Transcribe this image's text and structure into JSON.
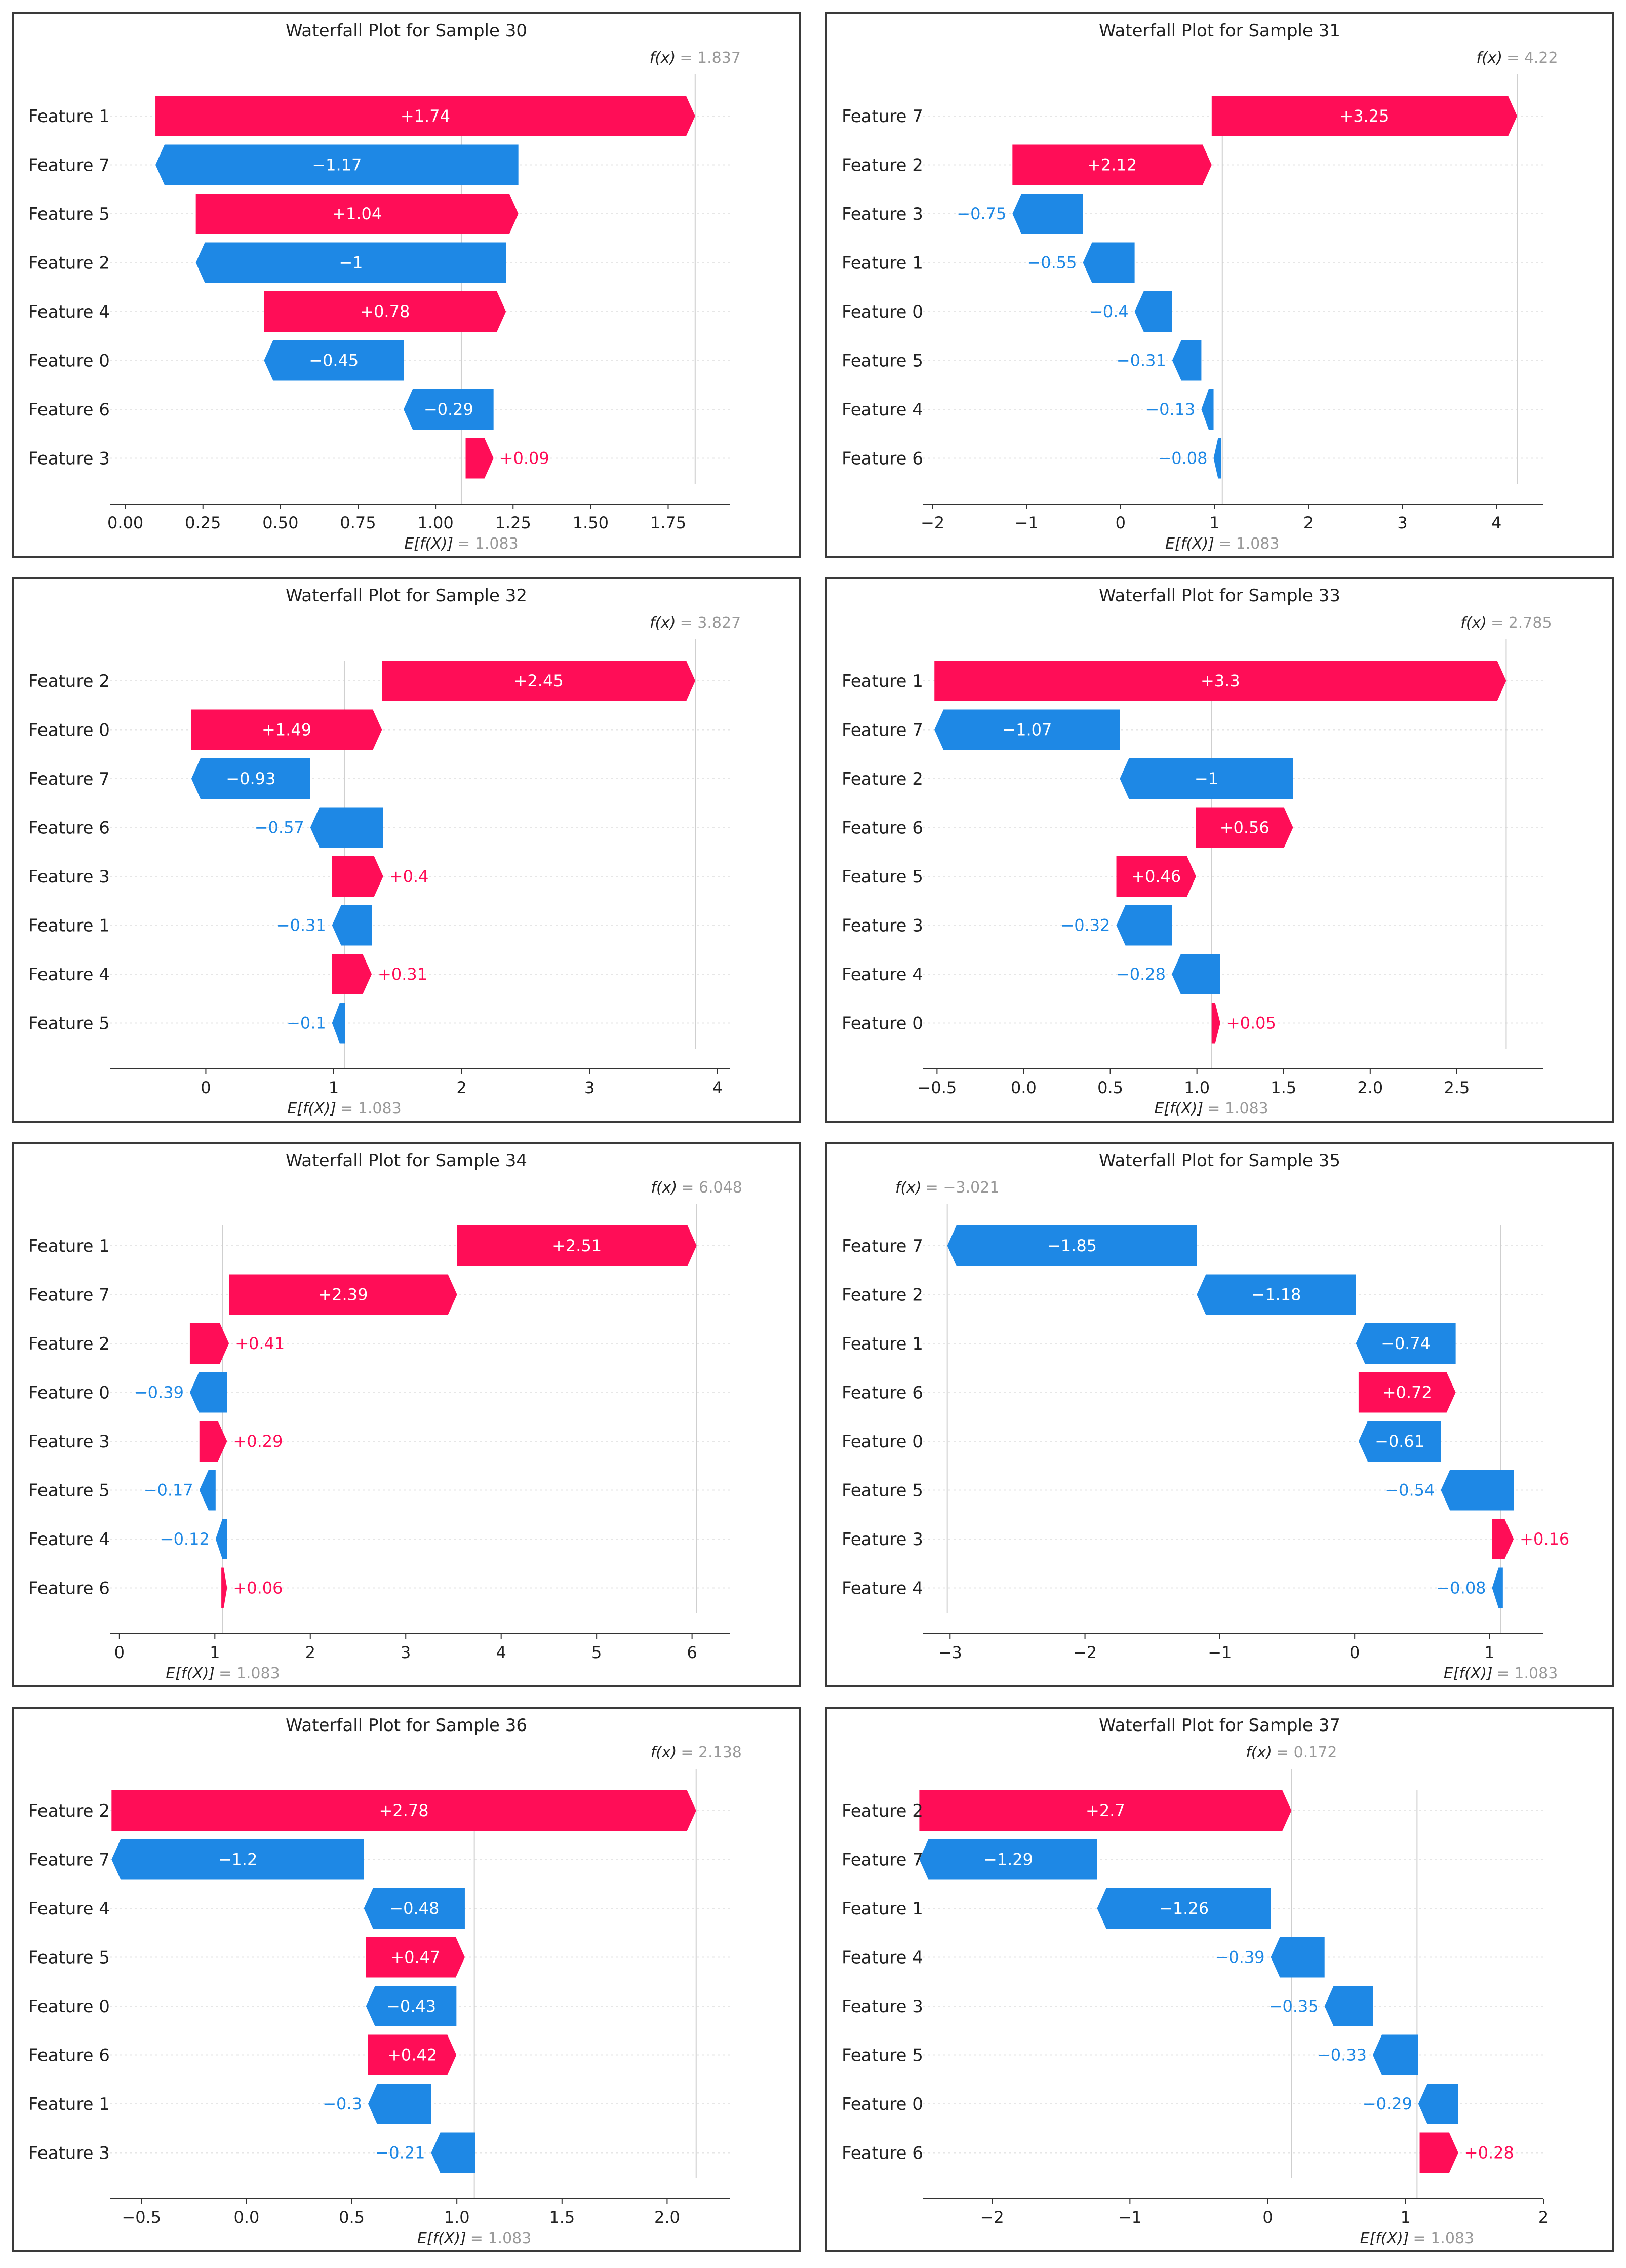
{
  "colors": {
    "positive": "#ff0d57",
    "negative": "#1e88e5"
  },
  "chart_data": [
    {
      "type": "waterfall",
      "title": "Waterfall Plot for Sample 30",
      "base_value": 1.083,
      "fx": 1.837,
      "base_label": "= 1.083",
      "fx_label": "= 1.837",
      "features": [
        "Feature 1",
        "Feature 7",
        "Feature 5",
        "Feature 2",
        "Feature 4",
        "Feature 0",
        "Feature 6",
        "Feature 3"
      ],
      "values": [
        1.74,
        -1.17,
        1.04,
        -1,
        0.78,
        -0.45,
        -0.29,
        0.09
      ],
      "labels": [
        "+1.74",
        "−1.17",
        "+1.04",
        "−1",
        "+0.78",
        "−0.45",
        "−0.29",
        "+0.09"
      ],
      "xlim": [
        -0.05,
        1.95
      ],
      "xticks": [
        0,
        0.25,
        0.5,
        0.75,
        1,
        1.25,
        1.5,
        1.75
      ],
      "xtick_labels": [
        "0.00",
        "0.25",
        "0.50",
        "0.75",
        "1.00",
        "1.25",
        "1.50",
        "1.75"
      ]
    },
    {
      "type": "waterfall",
      "title": "Waterfall Plot for Sample 31",
      "base_value": 1.083,
      "fx": 4.22,
      "base_label": "= 1.083",
      "fx_label": "= 4.22",
      "features": [
        "Feature 7",
        "Feature 2",
        "Feature 3",
        "Feature 1",
        "Feature 0",
        "Feature 5",
        "Feature 4",
        "Feature 6"
      ],
      "values": [
        3.25,
        2.12,
        -0.75,
        -0.55,
        -0.4,
        -0.31,
        -0.13,
        -0.08
      ],
      "labels": [
        "+3.25",
        "+2.12",
        "−0.75",
        "−0.55",
        "−0.4",
        "−0.31",
        "−0.13",
        "−0.08"
      ],
      "xlim": [
        -2.1,
        4.5
      ],
      "xticks": [
        -2,
        -1,
        0,
        1,
        2,
        3,
        4
      ],
      "xtick_labels": [
        "−2",
        "−1",
        "0",
        "1",
        "2",
        "3",
        "4"
      ]
    },
    {
      "type": "waterfall",
      "title": "Waterfall Plot for Sample 32",
      "base_value": 1.083,
      "fx": 3.827,
      "base_label": "= 1.083",
      "fx_label": "= 3.827",
      "features": [
        "Feature 2",
        "Feature 0",
        "Feature 7",
        "Feature 6",
        "Feature 3",
        "Feature 1",
        "Feature 4",
        "Feature 5"
      ],
      "values": [
        2.45,
        1.49,
        -0.93,
        -0.57,
        0.4,
        -0.31,
        0.31,
        -0.1
      ],
      "labels": [
        "+2.45",
        "+1.49",
        "−0.93",
        "−0.57",
        "+0.4",
        "−0.31",
        "+0.31",
        "−0.1"
      ],
      "xlim": [
        -0.75,
        4.1
      ],
      "xticks": [
        0,
        1,
        2,
        3,
        4
      ],
      "xtick_labels": [
        "0",
        "1",
        "2",
        "3",
        "4"
      ]
    },
    {
      "type": "waterfall",
      "title": "Waterfall Plot for Sample 33",
      "base_value": 1.083,
      "fx": 2.785,
      "base_label": "= 1.083",
      "fx_label": "= 2.785",
      "features": [
        "Feature 1",
        "Feature 7",
        "Feature 2",
        "Feature 6",
        "Feature 5",
        "Feature 3",
        "Feature 4",
        "Feature 0"
      ],
      "values": [
        3.3,
        -1.07,
        -1,
        0.56,
        0.46,
        -0.32,
        -0.28,
        0.05
      ],
      "labels": [
        "+3.3",
        "−1.07",
        "−1",
        "+0.56",
        "+0.46",
        "−0.32",
        "−0.28",
        "+0.05"
      ],
      "xlim": [
        -0.58,
        3.0
      ],
      "xticks": [
        -0.5,
        0,
        0.5,
        1,
        1.5,
        2,
        2.5
      ],
      "xtick_labels": [
        "−0.5",
        "0.0",
        "0.5",
        "1.0",
        "1.5",
        "2.0",
        "2.5"
      ]
    },
    {
      "type": "waterfall",
      "title": "Waterfall Plot for Sample 34",
      "base_value": 1.083,
      "fx": 6.048,
      "base_label": "= 1.083",
      "fx_label": "= 6.048",
      "features": [
        "Feature 1",
        "Feature 7",
        "Feature 2",
        "Feature 0",
        "Feature 3",
        "Feature 5",
        "Feature 4",
        "Feature 6"
      ],
      "values": [
        2.51,
        2.39,
        0.41,
        -0.39,
        0.29,
        -0.17,
        -0.12,
        0.06
      ],
      "labels": [
        "+2.51",
        "+2.39",
        "+0.41",
        "−0.39",
        "+0.29",
        "−0.17",
        "−0.12",
        "+0.06"
      ],
      "xlim": [
        -0.1,
        6.4
      ],
      "xticks": [
        0,
        1,
        2,
        3,
        4,
        5,
        6
      ],
      "xtick_labels": [
        "0",
        "1",
        "2",
        "3",
        "4",
        "5",
        "6"
      ]
    },
    {
      "type": "waterfall",
      "title": "Waterfall Plot for Sample 35",
      "base_value": 1.083,
      "fx": -3.021,
      "base_label": "= 1.083",
      "fx_label": "= −3.021",
      "features": [
        "Feature 7",
        "Feature 2",
        "Feature 1",
        "Feature 6",
        "Feature 0",
        "Feature 5",
        "Feature 3",
        "Feature 4"
      ],
      "values": [
        -1.85,
        -1.18,
        -0.74,
        0.72,
        -0.61,
        -0.54,
        0.16,
        -0.08
      ],
      "labels": [
        "−1.85",
        "−1.18",
        "−0.74",
        "+0.72",
        "−0.61",
        "−0.54",
        "+0.16",
        "−0.08"
      ],
      "xlim": [
        -3.2,
        1.4
      ],
      "xticks": [
        -3,
        -2,
        -1,
        0,
        1
      ],
      "xtick_labels": [
        "−3",
        "−2",
        "−1",
        "0",
        "1"
      ]
    },
    {
      "type": "waterfall",
      "title": "Waterfall Plot for Sample 36",
      "base_value": 1.083,
      "fx": 2.138,
      "base_label": "= 1.083",
      "fx_label": "= 2.138",
      "features": [
        "Feature 2",
        "Feature 7",
        "Feature 4",
        "Feature 5",
        "Feature 0",
        "Feature 6",
        "Feature 1",
        "Feature 3"
      ],
      "values": [
        2.78,
        -1.2,
        -0.48,
        0.47,
        -0.43,
        0.42,
        -0.3,
        -0.21
      ],
      "labels": [
        "+2.78",
        "−1.2",
        "−0.48",
        "+0.47",
        "−0.43",
        "+0.42",
        "−0.3",
        "−0.21"
      ],
      "xlim": [
        -0.65,
        2.3
      ],
      "xticks": [
        -0.5,
        0,
        0.5,
        1,
        1.5,
        2
      ],
      "xtick_labels": [
        "−0.5",
        "0.0",
        "0.5",
        "1.0",
        "1.5",
        "2.0"
      ]
    },
    {
      "type": "waterfall",
      "title": "Waterfall Plot for Sample 37",
      "base_value": 1.083,
      "fx": 0.172,
      "base_label": "= 1.083",
      "fx_label": "= 0.172",
      "features": [
        "Feature 2",
        "Feature 7",
        "Feature 1",
        "Feature 4",
        "Feature 3",
        "Feature 5",
        "Feature 0",
        "Feature 6"
      ],
      "values": [
        2.7,
        -1.29,
        -1.26,
        -0.39,
        -0.35,
        -0.33,
        -0.29,
        0.28
      ],
      "labels": [
        "+2.7",
        "−1.29",
        "−1.26",
        "−0.39",
        "−0.35",
        "−0.33",
        "−0.29",
        "+0.28"
      ],
      "xlim": [
        -2.5,
        2.0
      ],
      "xticks": [
        -2,
        -1,
        0,
        1,
        2
      ],
      "xtick_labels": [
        "−2",
        "−1",
        "0",
        "1",
        "2"
      ]
    }
  ]
}
